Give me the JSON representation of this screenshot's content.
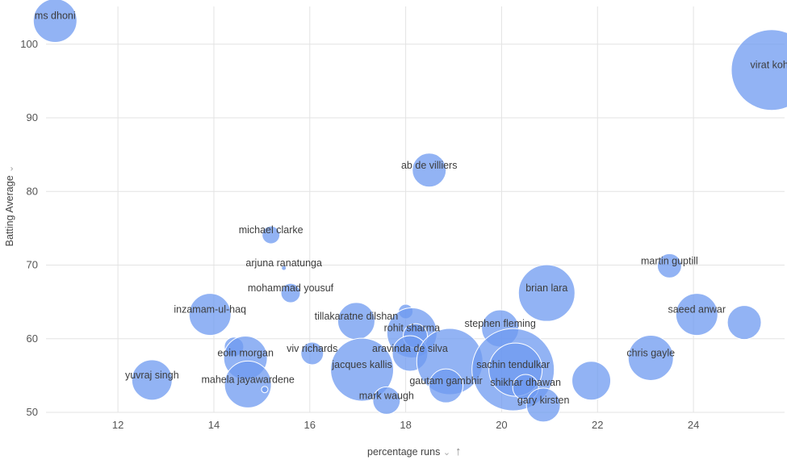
{
  "chart_data": {
    "type": "scatter",
    "subtype": "bubble",
    "xlabel": "percentage runs",
    "ylabel": "Batting Average",
    "xlim": [
      10.5,
      25.9
    ],
    "ylim": [
      50,
      106
    ],
    "xticks": [
      12,
      14,
      16,
      18,
      20,
      22,
      24
    ],
    "yticks": [
      50,
      60,
      70,
      80,
      90,
      100
    ],
    "grid": true,
    "color": "#6d9af0",
    "points": [
      {
        "label": "ms dhoni",
        "x": 10.69,
        "y": 103.2,
        "size": 27
      },
      {
        "label": "virat kohli",
        "x": 25.63,
        "y": 96.5,
        "size": 50
      },
      {
        "label": "ab de villiers",
        "x": 18.49,
        "y": 82.9,
        "size": 21
      },
      {
        "label": "michael clarke",
        "x": 15.19,
        "y": 74.1,
        "size": 11
      },
      {
        "label": "arjuna ranatunga",
        "x": 15.46,
        "y": 69.6,
        "size": 1
      },
      {
        "label": "mohammad yousuf",
        "x": 15.6,
        "y": 66.2,
        "size": 12
      },
      {
        "label": "martin guptill",
        "x": 23.5,
        "y": 69.9,
        "size": 15
      },
      {
        "label": "brian lara",
        "x": 20.94,
        "y": 66.2,
        "size": 35
      },
      {
        "label": "saeed anwar",
        "x": 24.07,
        "y": 63.3,
        "size": 26
      },
      {
        "label": "",
        "x": 25.06,
        "y": 62.2,
        "size": 21
      },
      {
        "label": "inzamam-ul-haq",
        "x": 13.92,
        "y": 63.3,
        "size": 26
      },
      {
        "label": "tillakaratne dilshan",
        "x": 16.97,
        "y": 62.4,
        "size": 23
      },
      {
        "label": "",
        "x": 18.0,
        "y": 63.7,
        "size": 9
      },
      {
        "label": "rohit sharma",
        "x": 18.13,
        "y": 60.8,
        "size": 31
      },
      {
        "label": "",
        "x": 18.2,
        "y": 60.4,
        "size": 15
      },
      {
        "label": "stephen fleming",
        "x": 19.97,
        "y": 61.4,
        "size": 23
      },
      {
        "label": "",
        "x": 14.42,
        "y": 58.9,
        "size": 12
      },
      {
        "label": "eoin morgan",
        "x": 14.66,
        "y": 57.4,
        "size": 27
      },
      {
        "label": "viv richards",
        "x": 16.05,
        "y": 58.0,
        "size": 14
      },
      {
        "label": "aravinda de silva",
        "x": 18.09,
        "y": 58.0,
        "size": 22
      },
      {
        "label": "jacques kallis",
        "x": 17.09,
        "y": 55.8,
        "size": 39
      },
      {
        "label": "",
        "x": 18.92,
        "y": 56.9,
        "size": 41
      },
      {
        "label": "gautam gambhir",
        "x": 18.84,
        "y": 53.6,
        "size": 21
      },
      {
        "label": "sachin tendulkar",
        "x": 20.24,
        "y": 55.8,
        "size": 51
      },
      {
        "label": "",
        "x": 20.29,
        "y": 55.8,
        "size": 33
      },
      {
        "label": "shikhar dhawan",
        "x": 20.5,
        "y": 53.4,
        "size": 16
      },
      {
        "label": "gary kirsten",
        "x": 20.87,
        "y": 51.0,
        "size": 21
      },
      {
        "label": "",
        "x": 21.87,
        "y": 54.3,
        "size": 24
      },
      {
        "label": "chris gayle",
        "x": 23.11,
        "y": 57.4,
        "size": 28
      },
      {
        "label": "yuvraj singh",
        "x": 12.71,
        "y": 54.4,
        "size": 25
      },
      {
        "label": "mahela jayawardene",
        "x": 14.71,
        "y": 53.8,
        "size": 29
      },
      {
        "label": "",
        "x": 15.06,
        "y": 53.1,
        "size": 4
      },
      {
        "label": "mark waugh",
        "x": 17.6,
        "y": 51.6,
        "size": 17
      }
    ]
  }
}
